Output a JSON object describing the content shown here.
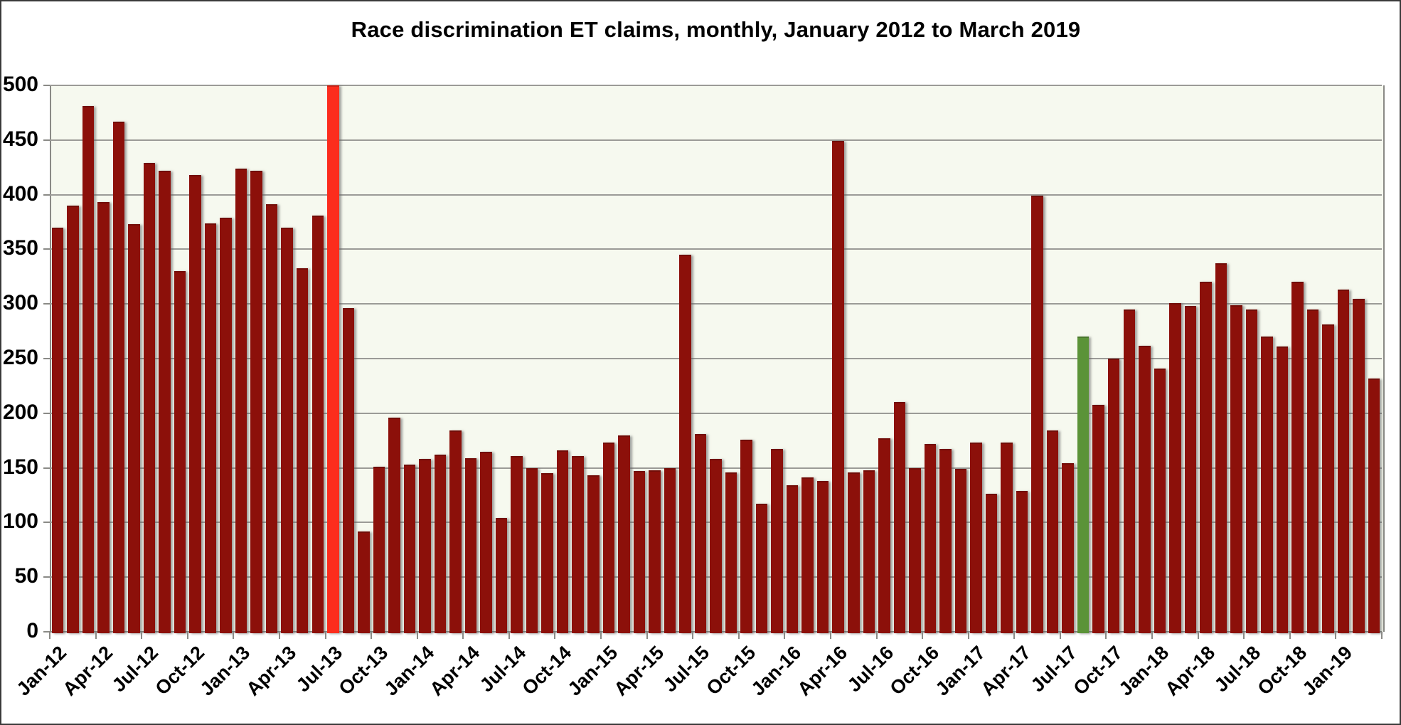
{
  "title": "Race discrimination ET claims, monthly, January 2012 to March 2019",
  "colors": {
    "bar_default": "#8C100A",
    "bar_highlight_red": "#FC2D1D",
    "bar_highlight_green": "#5B9338",
    "plot_background": "#F6F9EF",
    "gridline": "#9B9B97",
    "axis": "#8A8A86",
    "text": "#000000",
    "frame_border": "#3a3a3a"
  },
  "chart_data": {
    "type": "bar",
    "title": "Race discrimination ET claims, monthly, January 2012 to March 2019",
    "xlabel": "",
    "ylabel": "",
    "ylim": [
      0,
      500
    ],
    "grid": true,
    "y_tick_labels": [
      "0",
      "50",
      "100",
      "150",
      "200",
      "250",
      "300",
      "350",
      "400",
      "450",
      "500"
    ],
    "x_tick_labels": [
      "Jan-12",
      "Apr-12",
      "Jul-12",
      "Oct-12",
      "Jan-13",
      "Apr-13",
      "Jul-13",
      "Oct-13",
      "Jan-14",
      "Apr-14",
      "Jul-14",
      "Oct-14",
      "Jan-15",
      "Apr-15",
      "Jul-15",
      "Oct-15",
      "Jan-16",
      "Apr-16",
      "Jul-16",
      "Oct-16",
      "Jan-17",
      "Apr-17",
      "Jul-17",
      "Oct-17",
      "Jan-18",
      "Apr-18",
      "Jul-18",
      "Oct-18",
      "Jan-19"
    ],
    "x_tick_interval_months": 3,
    "categories": [
      "Jan-12",
      "Feb-12",
      "Mar-12",
      "Apr-12",
      "May-12",
      "Jun-12",
      "Jul-12",
      "Aug-12",
      "Sep-12",
      "Oct-12",
      "Nov-12",
      "Dec-12",
      "Jan-13",
      "Feb-13",
      "Mar-13",
      "Apr-13",
      "May-13",
      "Jun-13",
      "Jul-13",
      "Aug-13",
      "Sep-13",
      "Oct-13",
      "Nov-13",
      "Dec-13",
      "Jan-14",
      "Feb-14",
      "Mar-14",
      "Apr-14",
      "May-14",
      "Jun-14",
      "Jul-14",
      "Aug-14",
      "Sep-14",
      "Oct-14",
      "Nov-14",
      "Dec-14",
      "Jan-15",
      "Feb-15",
      "Mar-15",
      "Apr-15",
      "May-15",
      "Jun-15",
      "Jul-15",
      "Aug-15",
      "Sep-15",
      "Oct-15",
      "Nov-15",
      "Dec-15",
      "Jan-16",
      "Feb-16",
      "Mar-16",
      "Apr-16",
      "May-16",
      "Jun-16",
      "Jul-16",
      "Aug-16",
      "Sep-16",
      "Oct-16",
      "Nov-16",
      "Dec-16",
      "Jan-17",
      "Feb-17",
      "Mar-17",
      "Apr-17",
      "May-17",
      "Jun-17",
      "Jul-17",
      "Aug-17",
      "Sep-17",
      "Oct-17",
      "Nov-17",
      "Dec-17",
      "Jan-18",
      "Feb-18",
      "Mar-18",
      "Apr-18",
      "May-18",
      "Jun-18",
      "Jul-18",
      "Aug-18",
      "Sep-18",
      "Oct-18",
      "Nov-18",
      "Dec-18",
      "Jan-19",
      "Feb-19",
      "Mar-19"
    ],
    "values": [
      370,
      390,
      481,
      393,
      467,
      373,
      429,
      422,
      330,
      418,
      374,
      379,
      424,
      422,
      391,
      370,
      333,
      381,
      500,
      296,
      92,
      151,
      196,
      153,
      158,
      162,
      184,
      159,
      165,
      104,
      161,
      150,
      145,
      166,
      161,
      143,
      173,
      180,
      147,
      148,
      150,
      345,
      181,
      158,
      146,
      176,
      117,
      167,
      134,
      141,
      138,
      449,
      146,
      148,
      177,
      210,
      150,
      172,
      167,
      149,
      173,
      126,
      173,
      129,
      399,
      184,
      154,
      270,
      208,
      250,
      295,
      262,
      241,
      301,
      298,
      320,
      337,
      299,
      295,
      270,
      261,
      320,
      295,
      281,
      313,
      305,
      232
    ],
    "special_bars": {
      "Jul-13": "bar_highlight_red",
      "Aug-17": "bar_highlight_green"
    },
    "notes": "Jul-13 bar reaches the top of the y-axis (clipped at 500). Aug-17 bar is green.",
    "legend": "none"
  }
}
